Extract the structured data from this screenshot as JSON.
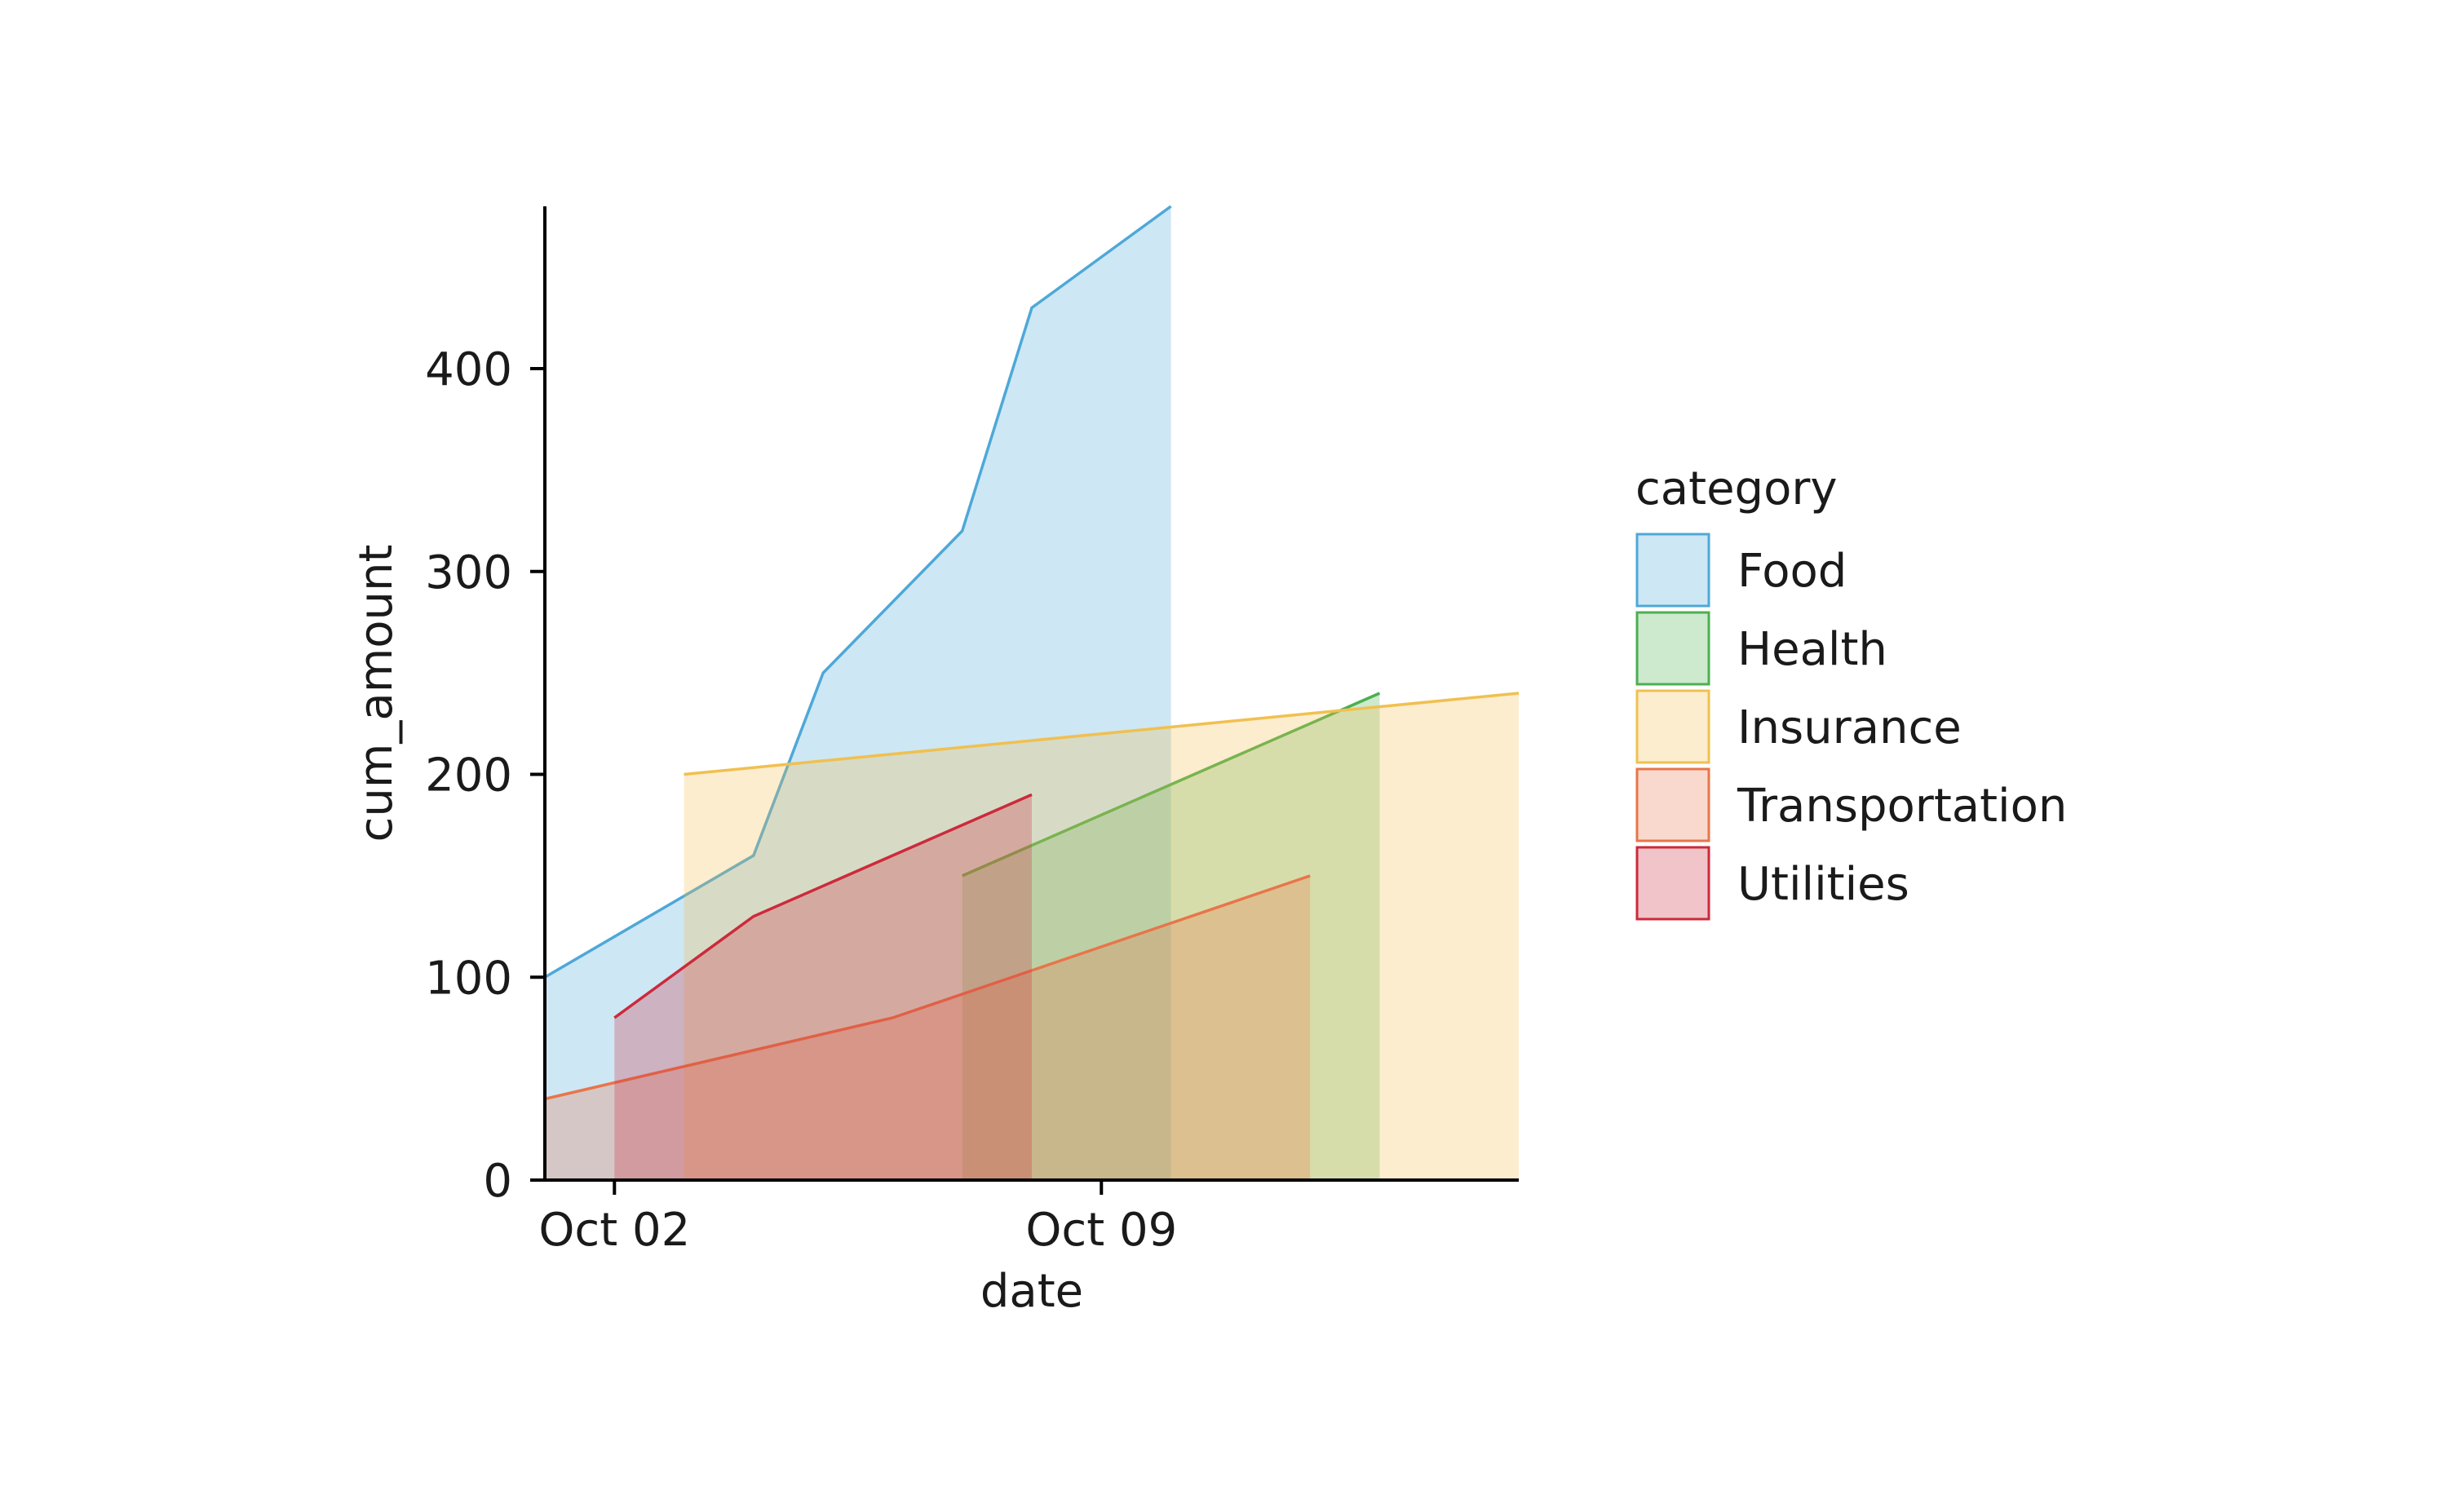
{
  "chart_data": {
    "type": "area",
    "xlabel": "date",
    "ylabel": "cum_amount",
    "xlim": [
      "2023-10-01",
      "2023-10-15"
    ],
    "ylim": [
      0,
      480
    ],
    "yticks": [
      0,
      100,
      200,
      300,
      400
    ],
    "xticks": [
      {
        "date": "2023-10-02",
        "label": "Oct 02"
      },
      {
        "date": "2023-10-09",
        "label": "Oct 09"
      }
    ],
    "grid": false,
    "legend": {
      "title": "category",
      "position": "right"
    },
    "series": [
      {
        "name": "Food",
        "color": "#4ea8d8",
        "points": [
          {
            "x": "2023-10-01",
            "y": 100
          },
          {
            "x": "2023-10-04",
            "y": 160
          },
          {
            "x": "2023-10-05",
            "y": 250
          },
          {
            "x": "2023-10-07",
            "y": 320
          },
          {
            "x": "2023-10-08",
            "y": 430
          },
          {
            "x": "2023-10-10",
            "y": 480
          }
        ]
      },
      {
        "name": "Health",
        "color": "#4caf50",
        "points": [
          {
            "x": "2023-10-07",
            "y": 150
          },
          {
            "x": "2023-10-13",
            "y": 240
          }
        ]
      },
      {
        "name": "Insurance",
        "color": "#f0c050",
        "points": [
          {
            "x": "2023-10-03",
            "y": 200
          },
          {
            "x": "2023-10-15",
            "y": 240
          }
        ]
      },
      {
        "name": "Transportation",
        "color": "#e8754a",
        "points": [
          {
            "x": "2023-10-01",
            "y": 40
          },
          {
            "x": "2023-10-06",
            "y": 80
          },
          {
            "x": "2023-10-12",
            "y": 150
          }
        ]
      },
      {
        "name": "Utilities",
        "color": "#cc2a3c",
        "points": [
          {
            "x": "2023-10-02",
            "y": 80
          },
          {
            "x": "2023-10-04",
            "y": 130
          },
          {
            "x": "2023-10-08",
            "y": 190
          }
        ]
      }
    ]
  }
}
